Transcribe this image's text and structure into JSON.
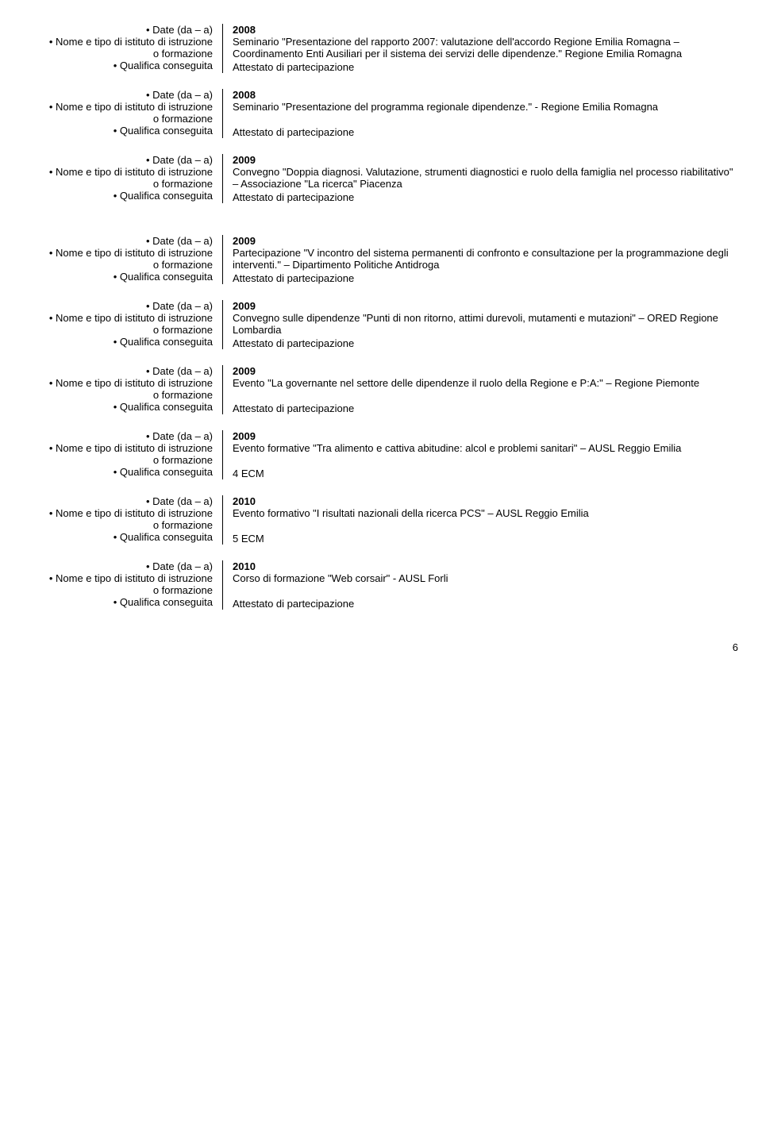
{
  "labels": {
    "date": "• Date (da – a)",
    "inst1": "• Nome e tipo di istituto di istruzione",
    "inst2": "o formazione",
    "qual": "• Qualifica conseguita"
  },
  "entries": [
    {
      "date": "2008",
      "desc": "Seminario \"Presentazione del rapporto 2007: valutazione dell'accordo Regione Emilia Romagna – Coordinamento Enti Ausiliari per il sistema dei servizi delle dipendenze.\" Regione Emilia Romagna",
      "qual": "Attestato di partecipazione",
      "justify": false,
      "gapAfter": false
    },
    {
      "date": "2008",
      "desc": "Seminario \"Presentazione del programma regionale dipendenze.\"  - Regione Emilia Romagna",
      "qual": "Attestato di partecipazione",
      "justify": false,
      "gapAfter": false
    },
    {
      "date": "2009",
      "desc": "Convegno \"Doppia diagnosi. Valutazione, strumenti diagnostici e ruolo della famiglia nel processo riabilitativo\" – Associazione \"La ricerca\" Piacenza",
      "qual": "Attestato di partecipazione",
      "justify": false,
      "gapAfter": true
    },
    {
      "date": "2009",
      "desc": "Partecipazione \"V incontro del sistema permanenti di confronto e consultazione per la programmazione degli interventi.\" – Dipartimento Politiche Antidroga",
      "qual": "Attestato di partecipazione",
      "justify": false,
      "gapAfter": false
    },
    {
      "date": "2009",
      "desc": "Convegno sulle dipendenze \"Punti di non ritorno, attimi durevoli, mutamenti e mutazioni\" – ORED Regione Lombardia",
      "qual": "Attestato di partecipazione",
      "justify": false,
      "gapAfter": false
    },
    {
      "date": "2009",
      "desc": "Evento \"La governante nel settore delle dipendenze il ruolo della Regione e P:A:\" – Regione Piemonte",
      "qual": "Attestato di partecipazione",
      "justify": true,
      "gapAfter": false
    },
    {
      "date": "2009",
      "desc": "Evento formative \"Tra alimento e cattiva abitudine: alcol e problemi sanitari\" – AUSL Reggio Emilia",
      "qual": "4 ECM",
      "justify": true,
      "gapAfter": false
    },
    {
      "date": "2010",
      "desc": "Evento formativo \"I risultati nazionali della ricerca PCS\" – AUSL Reggio Emilia",
      "qual": "5 ECM",
      "justify": false,
      "gapAfter": false
    },
    {
      "date": "2010",
      "desc": "Corso di formazione \"Web corsair\"  -  AUSL Forli",
      "qual": "Attestato di partecipazione",
      "justify": false,
      "gapAfter": false
    }
  ],
  "pageNumber": "6"
}
